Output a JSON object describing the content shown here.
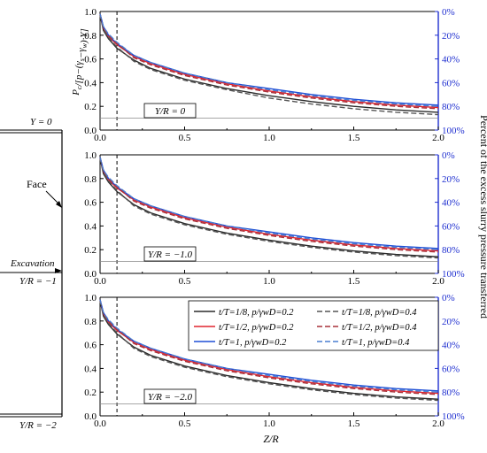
{
  "figure": {
    "y_left_label": "P",
    "y_left_label_sub": "c",
    "y_left_label_rest": "/[p−(γ",
    "y_left_label_sub2": "s",
    "y_left_label_rest2": "−γ",
    "y_left_label_sub3": "w",
    "y_left_label_rest3": ")·Y]",
    "y_right_label": "Percent of the excess slurry pressure transferred",
    "x_label": "Z/R",
    "schematic": {
      "face_label": "Face",
      "excavation_label": "Excavation",
      "level_labels": [
        "Y = 0",
        "Y/R = −1",
        "Y/R = −2"
      ]
    },
    "colors": {
      "black": "#2b2b2b",
      "red": "#e0252f",
      "blue": "#1f4fd6",
      "gray_black": "#555555",
      "darkred": "#a8323a",
      "lightblue": "#4a7fd0",
      "axis_right": "#1f2fd0"
    }
  },
  "chart_data": [
    {
      "type": "line",
      "panel_label": "Y/R = 0",
      "xlim": [
        0.0,
        2.0
      ],
      "ylim": [
        0.0,
        1.0
      ],
      "x_ticks": [
        "0.0",
        "0.5",
        "1.0",
        "1.5",
        "2.0"
      ],
      "y_ticks": [
        "0.0",
        "0.2",
        "0.4",
        "0.6",
        "0.8",
        "1.0"
      ],
      "y2_ticks": [
        "100%",
        "80%",
        "60%",
        "40%",
        "20%",
        "0%"
      ],
      "vline_x": 0.1,
      "hline_y": 0.1,
      "x": [
        0.0,
        0.02,
        0.05,
        0.1,
        0.2,
        0.3,
        0.5,
        0.75,
        1.0,
        1.25,
        1.5,
        1.75,
        2.0
      ],
      "series": [
        {
          "name": "t/T=1/8, p/γwD=0.2",
          "values": [
            0.97,
            0.84,
            0.77,
            0.69,
            0.59,
            0.52,
            0.43,
            0.35,
            0.29,
            0.24,
            0.2,
            0.17,
            0.15
          ]
        },
        {
          "name": "t/T=1/2, p/γwD=0.2",
          "values": [
            0.98,
            0.86,
            0.79,
            0.72,
            0.62,
            0.56,
            0.47,
            0.39,
            0.33,
            0.28,
            0.24,
            0.21,
            0.19
          ]
        },
        {
          "name": "t/T=1, p/γwD=0.2",
          "values": [
            0.98,
            0.87,
            0.8,
            0.73,
            0.63,
            0.57,
            0.48,
            0.4,
            0.35,
            0.3,
            0.26,
            0.23,
            0.21
          ]
        },
        {
          "name": "t/T=1/8, p/γwD=0.4",
          "values": [
            0.97,
            0.85,
            0.78,
            0.7,
            0.58,
            0.51,
            0.42,
            0.34,
            0.27,
            0.22,
            0.18,
            0.15,
            0.13
          ]
        },
        {
          "name": "t/T=1/2, p/γwD=0.4",
          "values": [
            0.98,
            0.86,
            0.8,
            0.73,
            0.61,
            0.55,
            0.46,
            0.38,
            0.32,
            0.27,
            0.23,
            0.2,
            0.18
          ]
        },
        {
          "name": "t/T=1, p/γwD=0.4",
          "values": [
            0.98,
            0.87,
            0.81,
            0.74,
            0.63,
            0.57,
            0.48,
            0.4,
            0.34,
            0.29,
            0.25,
            0.22,
            0.2
          ]
        }
      ]
    },
    {
      "type": "line",
      "panel_label": "Y/R = −1.0",
      "xlim": [
        0.0,
        2.0
      ],
      "ylim": [
        0.0,
        1.0
      ],
      "x_ticks": [
        "0.0",
        "0.5",
        "1.0",
        "1.5",
        "2.0"
      ],
      "y_ticks": [
        "0.0",
        "0.2",
        "0.4",
        "0.6",
        "0.8",
        "1.0"
      ],
      "y2_ticks": [
        "100%",
        "80%",
        "60%",
        "40%",
        "20%",
        "0%"
      ],
      "vline_x": 0.1,
      "hline_y": 0.1,
      "x": [
        0.0,
        0.02,
        0.05,
        0.1,
        0.2,
        0.3,
        0.5,
        0.75,
        1.0,
        1.25,
        1.5,
        1.75,
        2.0
      ],
      "series": [
        {
          "name": "t/T=1/8, p/γwD=0.2",
          "values": [
            0.97,
            0.84,
            0.77,
            0.69,
            0.58,
            0.51,
            0.42,
            0.34,
            0.28,
            0.23,
            0.19,
            0.16,
            0.14
          ]
        },
        {
          "name": "t/T=1/2, p/γwD=0.2",
          "values": [
            0.98,
            0.86,
            0.79,
            0.72,
            0.62,
            0.56,
            0.47,
            0.39,
            0.33,
            0.28,
            0.24,
            0.21,
            0.19
          ]
        },
        {
          "name": "t/T=1, p/γwD=0.2",
          "values": [
            0.98,
            0.87,
            0.8,
            0.73,
            0.63,
            0.57,
            0.48,
            0.4,
            0.35,
            0.3,
            0.26,
            0.23,
            0.21
          ]
        },
        {
          "name": "t/T=1/8, p/γwD=0.4",
          "values": [
            0.97,
            0.85,
            0.78,
            0.7,
            0.57,
            0.5,
            0.41,
            0.33,
            0.27,
            0.22,
            0.18,
            0.15,
            0.13
          ]
        },
        {
          "name": "t/T=1/2, p/γwD=0.4",
          "values": [
            0.98,
            0.86,
            0.8,
            0.73,
            0.61,
            0.55,
            0.46,
            0.38,
            0.32,
            0.27,
            0.23,
            0.2,
            0.18
          ]
        },
        {
          "name": "t/T=1, p/γwD=0.4",
          "values": [
            0.98,
            0.87,
            0.81,
            0.74,
            0.63,
            0.57,
            0.48,
            0.4,
            0.34,
            0.29,
            0.25,
            0.22,
            0.2
          ]
        }
      ]
    },
    {
      "type": "line",
      "panel_label": "Y/R = −2.0",
      "xlim": [
        0.0,
        2.0
      ],
      "ylim": [
        0.0,
        1.0
      ],
      "x_ticks": [
        "0.0",
        "0.5",
        "1.0",
        "1.5",
        "2.0"
      ],
      "y_ticks": [
        "0.0",
        "0.2",
        "0.4",
        "0.6",
        "0.8",
        "1.0"
      ],
      "y2_ticks": [
        "100%",
        "80%",
        "60%",
        "40%",
        "20%",
        "0%"
      ],
      "vline_x": 0.1,
      "hline_y": 0.1,
      "x": [
        0.0,
        0.02,
        0.05,
        0.1,
        0.2,
        0.3,
        0.5,
        0.75,
        1.0,
        1.25,
        1.5,
        1.75,
        2.0
      ],
      "series": [
        {
          "name": "t/T=1/8, p/γwD=0.2",
          "values": [
            0.97,
            0.84,
            0.77,
            0.69,
            0.58,
            0.51,
            0.42,
            0.34,
            0.28,
            0.23,
            0.19,
            0.16,
            0.14
          ]
        },
        {
          "name": "t/T=1/2, p/γwD=0.2",
          "values": [
            0.98,
            0.86,
            0.79,
            0.72,
            0.62,
            0.56,
            0.47,
            0.39,
            0.33,
            0.28,
            0.24,
            0.21,
            0.19
          ]
        },
        {
          "name": "t/T=1, p/γwD=0.2",
          "values": [
            0.98,
            0.87,
            0.8,
            0.73,
            0.63,
            0.57,
            0.48,
            0.4,
            0.35,
            0.3,
            0.26,
            0.23,
            0.21
          ]
        },
        {
          "name": "t/T=1/8, p/γwD=0.4",
          "values": [
            0.97,
            0.85,
            0.78,
            0.7,
            0.57,
            0.5,
            0.41,
            0.33,
            0.27,
            0.22,
            0.18,
            0.15,
            0.13
          ]
        },
        {
          "name": "t/T=1/2, p/γwD=0.4",
          "values": [
            0.98,
            0.86,
            0.8,
            0.73,
            0.61,
            0.55,
            0.46,
            0.38,
            0.32,
            0.27,
            0.23,
            0.2,
            0.18
          ]
        },
        {
          "name": "t/T=1, p/γwD=0.4",
          "values": [
            0.98,
            0.87,
            0.81,
            0.74,
            0.63,
            0.57,
            0.48,
            0.4,
            0.34,
            0.29,
            0.25,
            0.22,
            0.2
          ]
        }
      ],
      "legend": {
        "placement": "top-right",
        "entries": [
          {
            "t": "t/T=1/8,",
            "p": "p/γwD=0.2",
            "color": "black",
            "dash": false
          },
          {
            "t": "t/T=1/8,",
            "p": "p/γwD=0.4",
            "color": "gray_black",
            "dash": true
          },
          {
            "t": "t/T=1/2,",
            "p": "p/γwD=0.2",
            "color": "red",
            "dash": false
          },
          {
            "t": "t/T=1/2,",
            "p": "p/γwD=0.4",
            "color": "darkred",
            "dash": true
          },
          {
            "t": "t/T=1,",
            "p": "p/γwD=0.2",
            "color": "blue",
            "dash": false
          },
          {
            "t": "t/T=1,",
            "p": "p/γwD=0.4",
            "color": "lightblue",
            "dash": true
          }
        ]
      }
    }
  ]
}
